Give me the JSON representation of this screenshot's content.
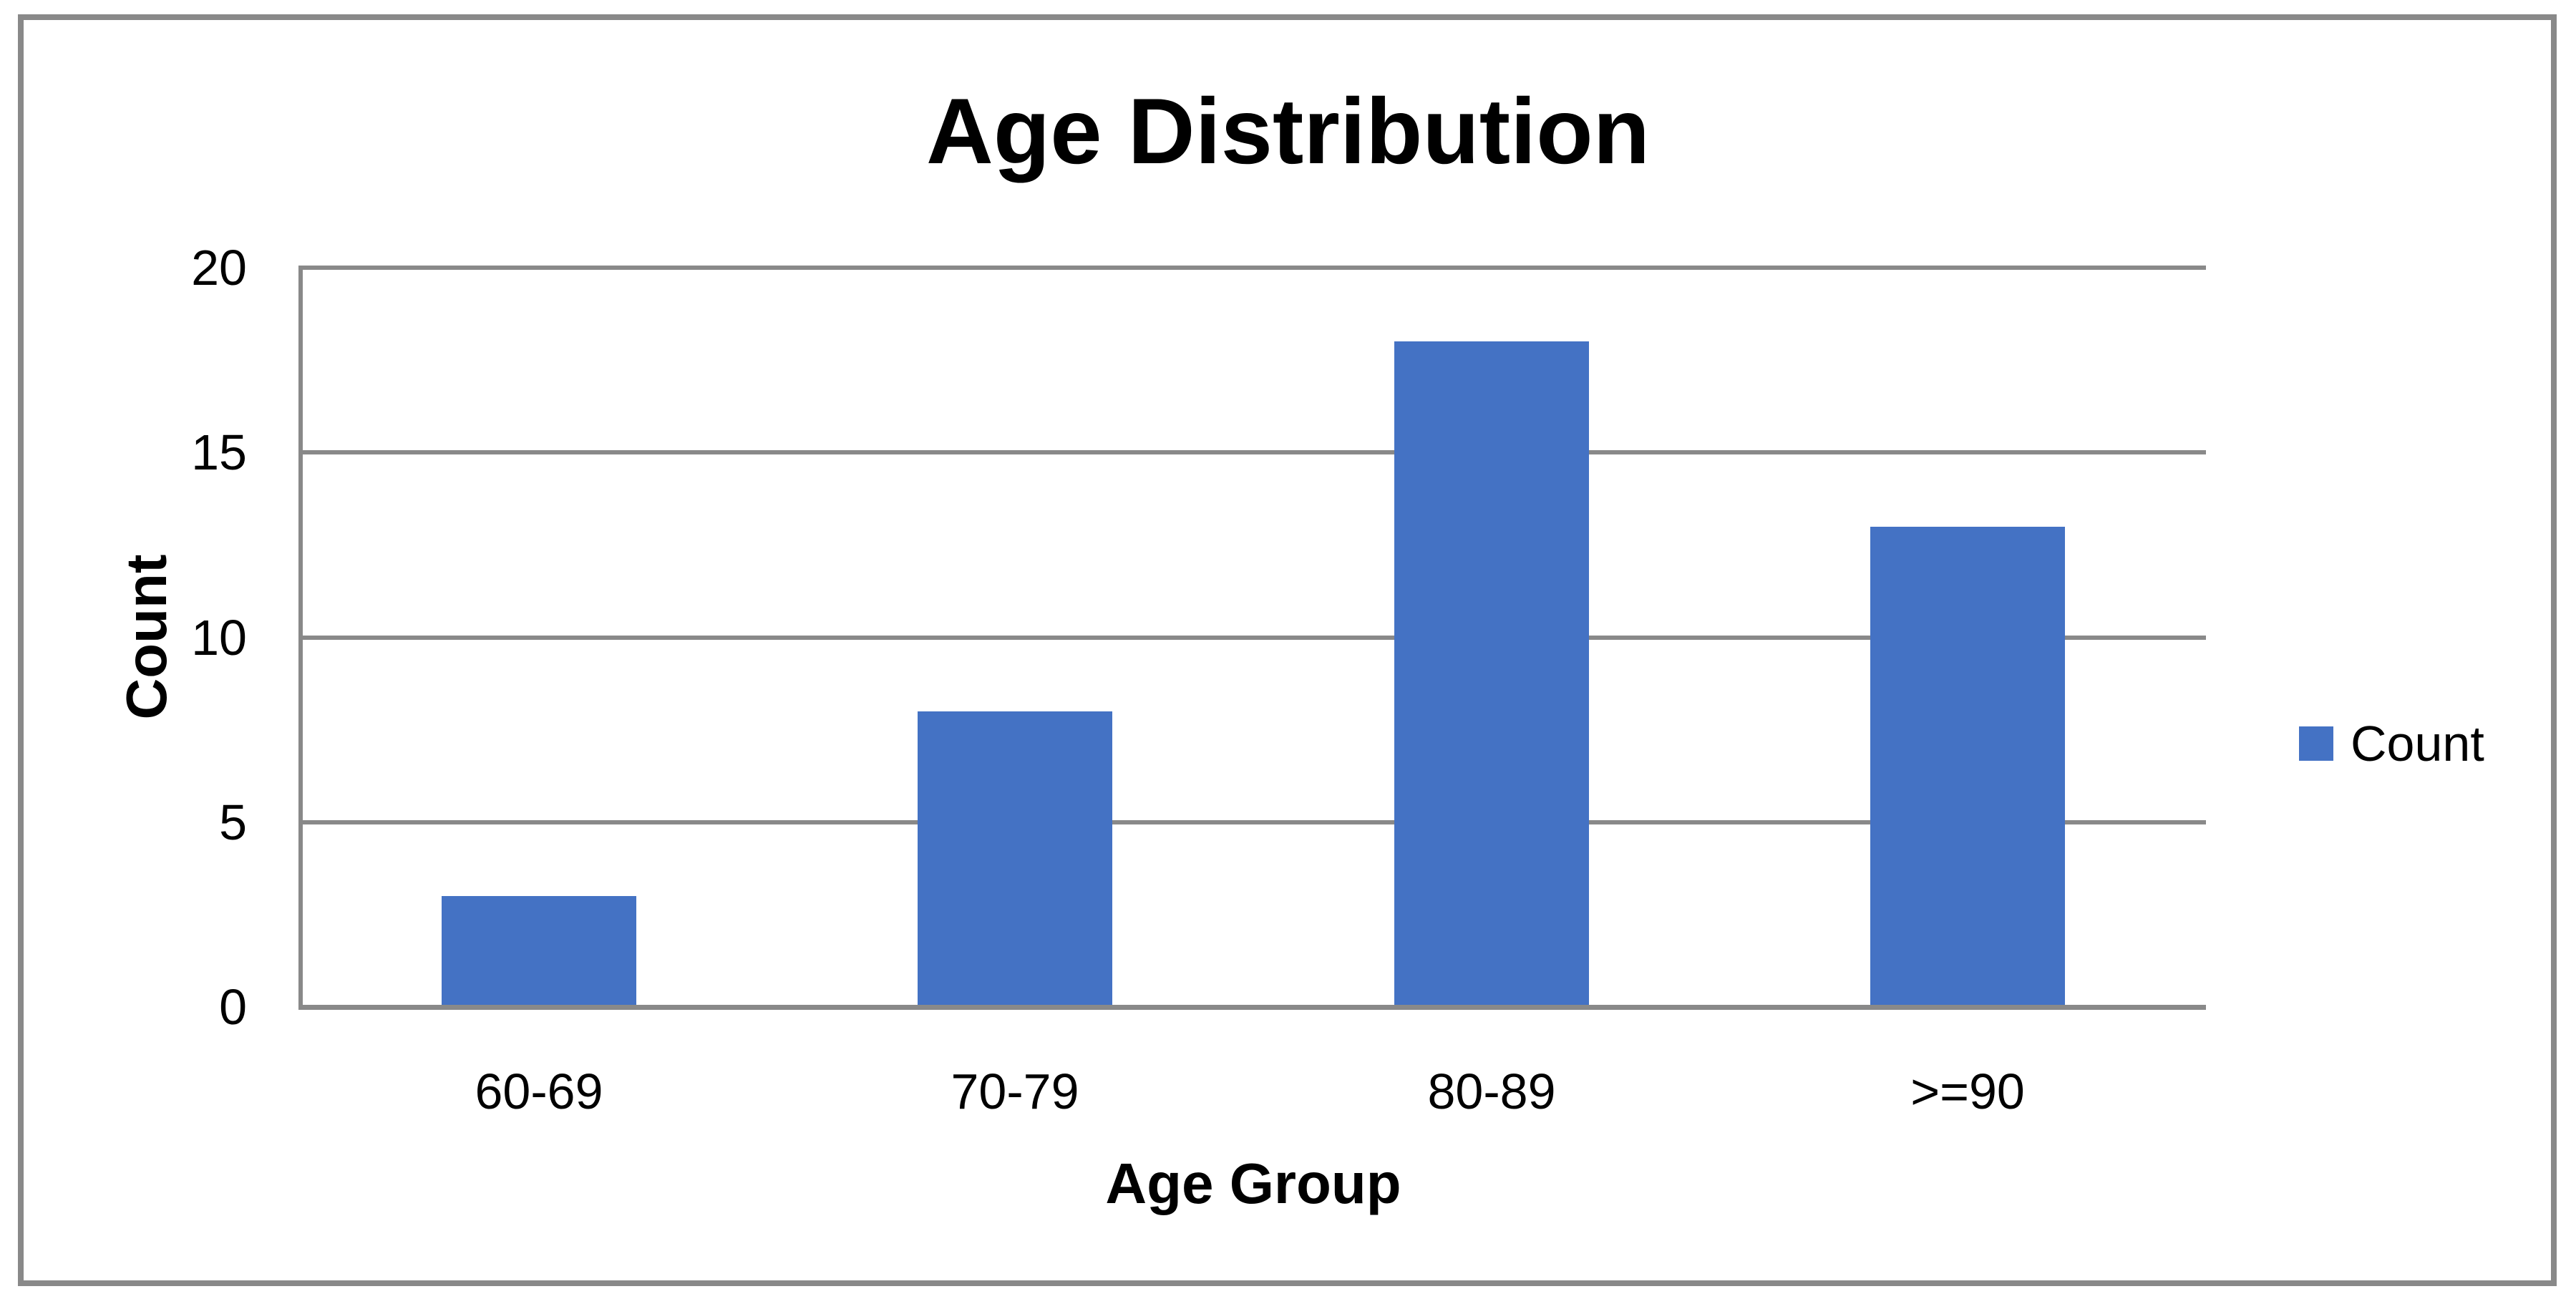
{
  "chart_data": {
    "type": "bar",
    "title": "Age Distribution",
    "xlabel": "Age Group",
    "ylabel": "Count",
    "categories": [
      "60-69",
      "70-79",
      "80-89",
      ">=90"
    ],
    "series": [
      {
        "name": "Count",
        "values": [
          3,
          8,
          18,
          13
        ]
      }
    ],
    "ylim": [
      0,
      20
    ],
    "yticks": [
      0,
      5,
      10,
      15,
      20
    ],
    "grid": true,
    "legend_position": "right",
    "colors": {
      "series": "#4472C4",
      "grid": "#898989",
      "axis": "#898989",
      "frame": "#898989",
      "text": "#000000",
      "background": "#FFFFFF"
    }
  }
}
